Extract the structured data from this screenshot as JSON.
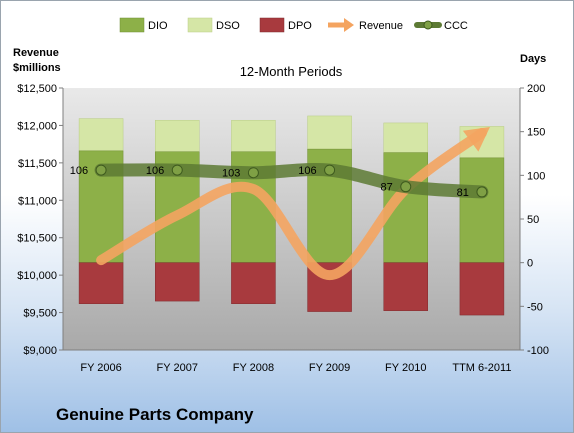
{
  "chart_data": {
    "type": "bar",
    "title": "12-Month Periods",
    "ylabel_left": "Revenue\n$millions",
    "ylabel_right": "Days",
    "categories": [
      "FY 2006",
      "FY 2007",
      "FY 2008",
      "FY 2009",
      "FY 2010",
      "TTM 6-2011"
    ],
    "left_ticks": [
      "$12,500",
      "$12,000",
      "$11,500",
      "$11,000",
      "$10,500",
      "$10,000",
      "$9,500",
      "$9,000"
    ],
    "right_ticks": [
      "200",
      "150",
      "100",
      "50",
      "0",
      "-50",
      "-100"
    ],
    "ylim_left": [
      9000,
      12500
    ],
    "ylim_right": [
      -100,
      200
    ],
    "grid": false,
    "legend_position": "top",
    "series": [
      {
        "name": "DIO",
        "kind": "bar-stack",
        "color": "#8db048",
        "values": [
          128,
          127,
          127,
          130,
          126,
          120
        ]
      },
      {
        "name": "DSO",
        "kind": "bar-stack",
        "color": "#d5e6a6",
        "values": [
          37,
          36,
          36,
          38,
          34,
          36
        ]
      },
      {
        "name": "DPO",
        "kind": "bar-negative",
        "color": "#a83a3e",
        "values": [
          -47,
          -44,
          -47,
          -56,
          -55,
          -60
        ]
      },
      {
        "name": "Revenue",
        "kind": "line-left-axis",
        "color": "#f4a460",
        "values": [
          10200,
          10800,
          11150,
          10000,
          11150,
          11900
        ]
      },
      {
        "name": "CCC",
        "kind": "line-right-axis",
        "color": "#5d7a34",
        "values": [
          106,
          106,
          103,
          106,
          87,
          81
        ]
      }
    ],
    "ccc_labels": [
      "106",
      "106",
      "103",
      "106",
      "87",
      "81"
    ]
  },
  "company": "Genuine Parts Company"
}
